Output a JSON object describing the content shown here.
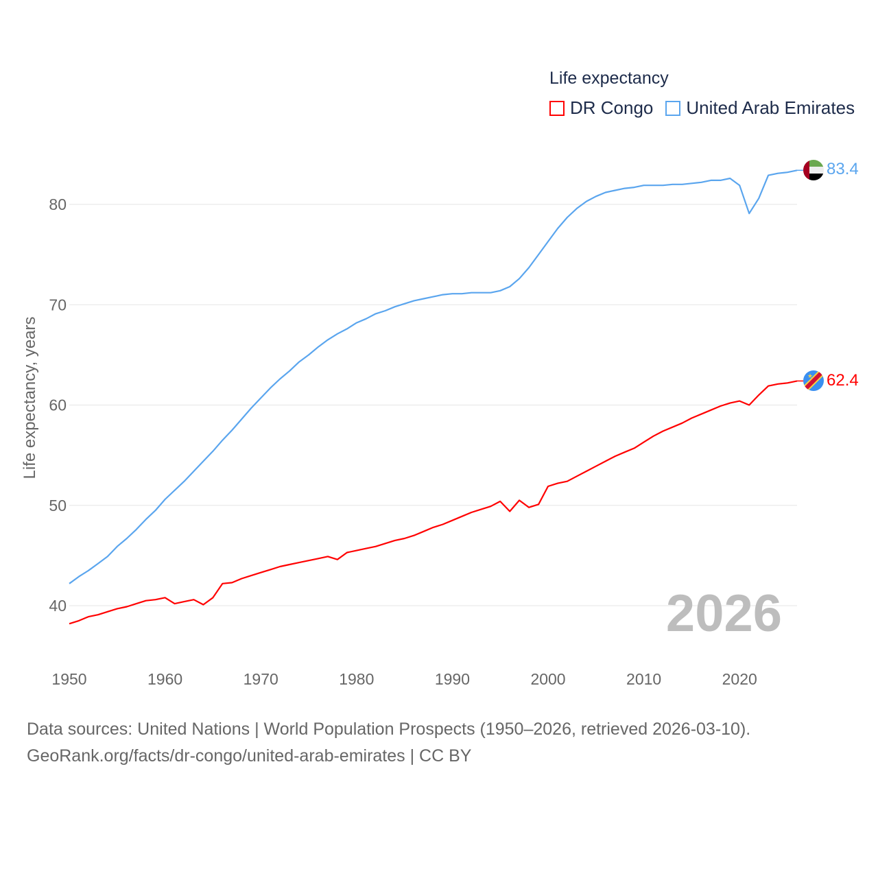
{
  "chart_data": {
    "type": "line",
    "title": "Life expectancy",
    "xlabel": "",
    "ylabel": "Life expectancy, years",
    "xlim": [
      1950,
      2026
    ],
    "ylim": [
      35,
      85
    ],
    "x_ticks": [
      1950,
      1960,
      1970,
      1980,
      1990,
      2000,
      2010,
      2020
    ],
    "y_ticks": [
      40,
      50,
      60,
      70,
      80
    ],
    "grid": true,
    "legend_position": "top-right",
    "year_label": "2026",
    "x": [
      1950,
      1951,
      1952,
      1953,
      1954,
      1955,
      1956,
      1957,
      1958,
      1959,
      1960,
      1961,
      1962,
      1963,
      1964,
      1965,
      1966,
      1967,
      1968,
      1969,
      1970,
      1971,
      1972,
      1973,
      1974,
      1975,
      1976,
      1977,
      1978,
      1979,
      1980,
      1981,
      1982,
      1983,
      1984,
      1985,
      1986,
      1987,
      1988,
      1989,
      1990,
      1991,
      1992,
      1993,
      1994,
      1995,
      1996,
      1997,
      1998,
      1999,
      2000,
      2001,
      2002,
      2003,
      2004,
      2005,
      2006,
      2007,
      2008,
      2009,
      2010,
      2011,
      2012,
      2013,
      2014,
      2015,
      2016,
      2017,
      2018,
      2019,
      2020,
      2021,
      2022,
      2023,
      2024,
      2025,
      2026
    ],
    "series": [
      {
        "name": "DR Congo",
        "color": "#ff0000",
        "end_label": "62.4",
        "values": [
          38.2,
          38.5,
          38.9,
          39.1,
          39.4,
          39.7,
          39.9,
          40.2,
          40.5,
          40.6,
          40.8,
          40.2,
          40.4,
          40.6,
          40.1,
          40.8,
          42.2,
          42.3,
          42.7,
          43.0,
          43.3,
          43.6,
          43.9,
          44.1,
          44.3,
          44.5,
          44.7,
          44.9,
          44.6,
          45.3,
          45.5,
          45.7,
          45.9,
          46.2,
          46.5,
          46.7,
          47.0,
          47.4,
          47.8,
          48.1,
          48.5,
          48.9,
          49.3,
          49.6,
          49.9,
          50.4,
          49.4,
          50.5,
          49.8,
          50.1,
          51.9,
          52.2,
          52.4,
          52.9,
          53.4,
          53.9,
          54.4,
          54.9,
          55.3,
          55.7,
          56.3,
          56.9,
          57.4,
          57.8,
          58.2,
          58.7,
          59.1,
          59.5,
          59.9,
          60.2,
          60.4,
          60.0,
          61.0,
          61.9,
          62.1,
          62.2,
          62.4
        ]
      },
      {
        "name": "United Arab Emirates",
        "color": "#5aa5ee",
        "end_label": "83.4",
        "values": [
          42.2,
          42.9,
          43.5,
          44.2,
          44.9,
          45.9,
          46.7,
          47.6,
          48.6,
          49.5,
          50.6,
          51.5,
          52.4,
          53.4,
          54.4,
          55.4,
          56.5,
          57.5,
          58.6,
          59.7,
          60.7,
          61.7,
          62.6,
          63.4,
          64.3,
          65.0,
          65.8,
          66.5,
          67.1,
          67.6,
          68.2,
          68.6,
          69.1,
          69.4,
          69.8,
          70.1,
          70.4,
          70.6,
          70.8,
          71.0,
          71.1,
          71.1,
          71.2,
          71.2,
          71.2,
          71.4,
          71.8,
          72.6,
          73.7,
          75.0,
          76.3,
          77.6,
          78.7,
          79.6,
          80.3,
          80.8,
          81.2,
          81.4,
          81.6,
          81.7,
          81.9,
          81.9,
          81.9,
          82.0,
          82.0,
          82.1,
          82.2,
          82.4,
          82.4,
          82.6,
          81.9,
          79.1,
          80.6,
          82.9,
          83.1,
          83.2,
          83.4
        ]
      }
    ]
  },
  "source": {
    "line1": "Data sources: United Nations | World Population Prospects (1950–2026, retrieved 2026-03-10).",
    "line2": "GeoRank.org/facts/dr-congo/united-arab-emirates | CC BY"
  }
}
